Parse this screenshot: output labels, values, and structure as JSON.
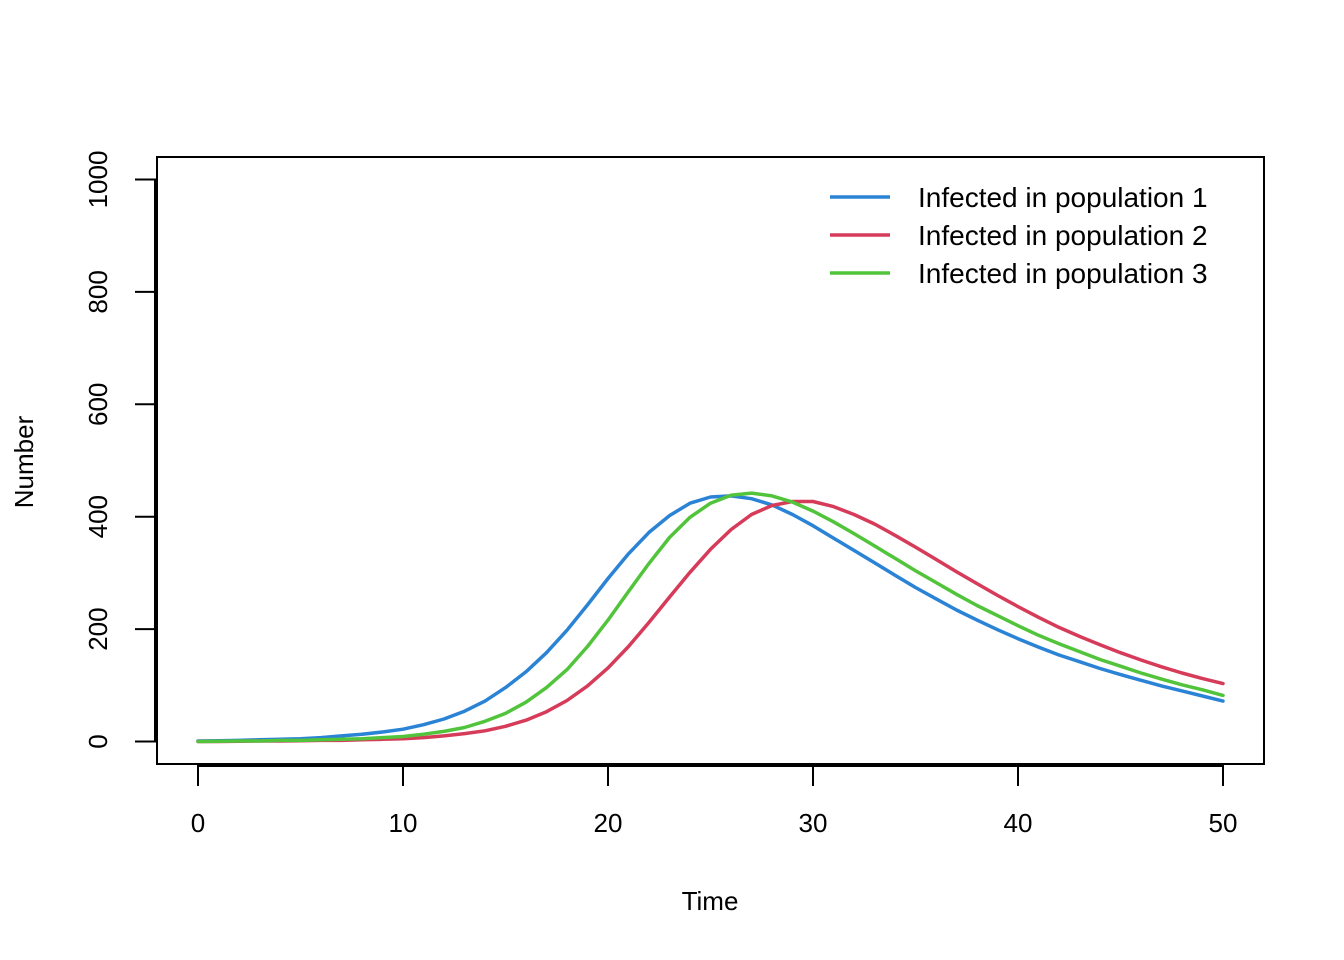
{
  "chart_data": {
    "type": "line",
    "title": "",
    "xlabel": "Time",
    "ylabel": "Number",
    "xlim": [
      -2,
      52
    ],
    "ylim": [
      -40,
      1040
    ],
    "x_ticks": [
      0,
      10,
      20,
      30,
      40,
      50
    ],
    "y_ticks": [
      0,
      200,
      400,
      600,
      800,
      1000
    ],
    "grid": false,
    "legend_position": "top-right",
    "x": [
      0,
      1,
      2,
      3,
      4,
      5,
      6,
      7,
      8,
      9,
      10,
      11,
      12,
      13,
      14,
      15,
      16,
      17,
      18,
      19,
      20,
      21,
      22,
      23,
      24,
      25,
      26,
      27,
      28,
      29,
      30,
      31,
      32,
      33,
      34,
      35,
      36,
      37,
      38,
      39,
      40,
      41,
      42,
      43,
      44,
      45,
      46,
      47,
      48,
      49,
      50
    ],
    "series": [
      {
        "name": "Infected in population 1",
        "color": "#2b83d6",
        "values": [
          1,
          1.5,
          2,
          3,
          4,
          5,
          7,
          10,
          13,
          17,
          22,
          30,
          40,
          54,
          72,
          96,
          124,
          158,
          198,
          243,
          290,
          334,
          372,
          402,
          424,
          435,
          437,
          432,
          421,
          404,
          384,
          362,
          340,
          318,
          296,
          274,
          254,
          234,
          216,
          199,
          183,
          168,
          154,
          142,
          130,
          119,
          109,
          99,
          90,
          81,
          72
        ]
      },
      {
        "name": "Infected in population 2",
        "color": "#d63c5a",
        "values": [
          0,
          0,
          0.5,
          1,
          1,
          1.5,
          2,
          2,
          3,
          4,
          5,
          7,
          10,
          14,
          19,
          27,
          38,
          53,
          73,
          99,
          131,
          169,
          212,
          257,
          301,
          342,
          377,
          404,
          420,
          427,
          427,
          418,
          404,
          387,
          367,
          346,
          324,
          302,
          281,
          260,
          240,
          221,
          203,
          187,
          172,
          158,
          145,
          133,
          122,
          112,
          103
        ]
      },
      {
        "name": "Infected in population 3",
        "color": "#52c43c",
        "values": [
          0,
          0.5,
          1,
          1,
          2,
          2,
          3,
          4,
          5,
          7,
          9,
          13,
          18,
          25,
          36,
          50,
          70,
          96,
          128,
          169,
          216,
          267,
          317,
          363,
          399,
          424,
          438,
          442,
          437,
          426,
          410,
          391,
          370,
          348,
          326,
          304,
          283,
          262,
          242,
          224,
          206,
          189,
          174,
          160,
          146,
          134,
          122,
          111,
          101,
          92,
          82
        ]
      }
    ]
  }
}
